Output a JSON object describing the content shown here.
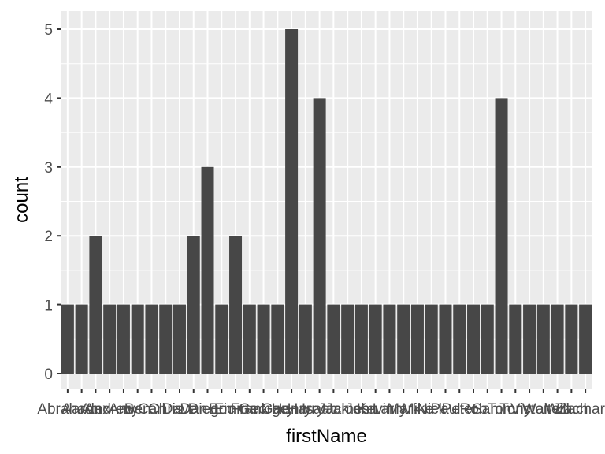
{
  "chart_data": {
    "type": "bar",
    "xlabel": "firstName",
    "ylabel": "count",
    "ylim": [
      0,
      5
    ],
    "yticks": [
      0,
      1,
      2,
      3,
      4,
      5
    ],
    "grid": true,
    "colors": {
      "panel": "#ebebeb",
      "grid": "#ffffff",
      "bar": "#474747",
      "tick": "#333333"
    },
    "categories": [
      "Abraham",
      "Aaron",
      "Alex",
      "Andrew",
      "Amy",
      "Ben",
      "Carl",
      "Chris",
      "Dave",
      "Dan",
      "Diego",
      "Eric",
      "Emma",
      "Frank",
      "George",
      "Gary",
      "Henry",
      "Harry",
      "Isaac",
      "Jack",
      "James",
      "John",
      "Kevin",
      "Larry",
      "Mark",
      "Mike",
      "Nick",
      "Paul",
      "Peter",
      "Rob",
      "Sam",
      "Tom",
      "Tony",
      "Victor",
      "Walter",
      "Will",
      "Zach",
      "Zachary"
    ],
    "values": [
      1,
      1,
      2,
      1,
      1,
      1,
      1,
      1,
      1,
      2,
      3,
      1,
      2,
      1,
      1,
      1,
      5,
      1,
      4,
      1,
      1,
      1,
      1,
      1,
      1,
      1,
      1,
      1,
      1,
      1,
      1,
      4,
      1,
      1,
      1,
      1,
      1,
      1
    ]
  }
}
